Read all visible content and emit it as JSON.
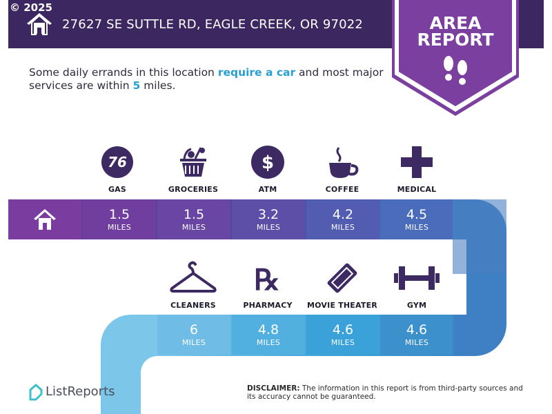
{
  "header": {
    "copyright": "© 2025",
    "address": "27627 SE SUTTLE RD, EAGLE CREEK, OR 97022",
    "home_icon": "house-icon"
  },
  "badge": {
    "line1": "AREA",
    "line2": "REPORT",
    "icon": "footprints-icon",
    "color": "#7b3fa0"
  },
  "intro": {
    "part1": "Some daily errands in this location ",
    "highlight1": "require a car",
    "part2": " and most major services are within ",
    "highlight2": "5",
    "part3": " miles."
  },
  "row1": [
    {
      "label": "GAS",
      "icon": "gas-76-icon",
      "value": "1.5",
      "unit": "MILES"
    },
    {
      "label": "GROCERIES",
      "icon": "grocery-basket-icon",
      "value": "1.5",
      "unit": "MILES"
    },
    {
      "label": "ATM",
      "icon": "dollar-icon",
      "value": "3.2",
      "unit": "MILES"
    },
    {
      "label": "COFFEE",
      "icon": "coffee-cup-icon",
      "value": "4.2",
      "unit": "MILES"
    },
    {
      "label": "MEDICAL",
      "icon": "medical-cross-icon",
      "value": "4.5",
      "unit": "MILES"
    }
  ],
  "row2": [
    {
      "label": "CLEANERS",
      "icon": "hanger-icon",
      "value": "6",
      "unit": "MILES"
    },
    {
      "label": "PHARMACY",
      "icon": "rx-icon",
      "value": "4.8",
      "unit": "MILES"
    },
    {
      "label": "MOVIE THEATER",
      "icon": "ticket-icon",
      "value": "4.6",
      "unit": "MILES"
    },
    {
      "label": "GYM",
      "icon": "dumbbell-icon",
      "value": "4.6",
      "unit": "MILES"
    }
  ],
  "colors": {
    "header_bg": "#3c2760",
    "highlight": "#2a9fd0",
    "icon_dark": "#3d2a63"
  },
  "footer": {
    "brand": "ListReports",
    "brand_icon": "listreports-logo-icon",
    "disclaimer_label": "DISCLAIMER:",
    "disclaimer_text": " The information in this report is from third-party sources and its accuracy cannot be guaranteed."
  }
}
